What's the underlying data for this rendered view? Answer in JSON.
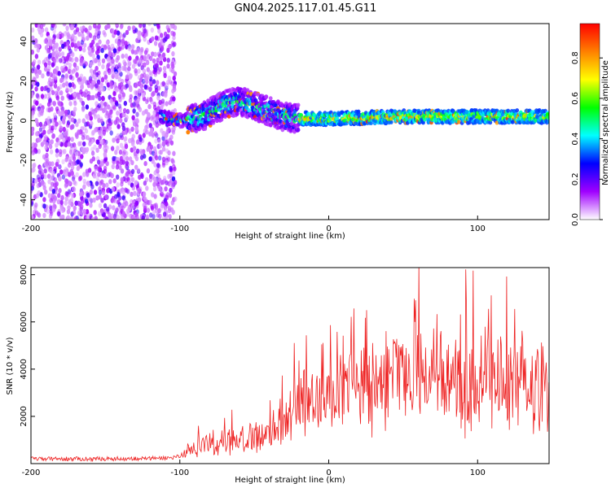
{
  "title": "GN04.2025.117.01.45.G11",
  "chart_data": [
    {
      "type": "heatmap",
      "xlabel": "Height of straight line (km)",
      "ylabel": "Frequency (Hz)",
      "xlim": [
        -200,
        148
      ],
      "ylim": [
        -50,
        49
      ],
      "xticks": [
        -200,
        -100,
        0,
        100
      ],
      "yticks": [
        -40,
        -20,
        0,
        20,
        40
      ],
      "colorbar": {
        "label": "Normalized spectral amplitude",
        "range": [
          0,
          0.97
        ],
        "ticks": [
          "0.0",
          "0.2",
          "0.4",
          "0.6",
          "0.8"
        ],
        "colors": [
          "#ffffff",
          "#a000ff",
          "#0000ff",
          "#00ffff",
          "#00ff00",
          "#ffff00",
          "#ff8000",
          "#ff0000"
        ]
      },
      "regions": [
        {
          "name": "noise",
          "x_range": [
            -200,
            -103
          ],
          "y_range": [
            -50,
            49
          ],
          "amplitude_range": [
            0.0,
            0.2
          ]
        },
        {
          "name": "signal",
          "x_range": [
            -113,
            148
          ],
          "center_frequency": 2,
          "amplitude_range": [
            0.05,
            0.97
          ]
        }
      ],
      "signal_track": [
        {
          "x": -113,
          "f": 2
        },
        {
          "x": -100,
          "f": 0
        },
        {
          "x": -85,
          "f": 2
        },
        {
          "x": -70,
          "f": 8
        },
        {
          "x": -60,
          "f": 10
        },
        {
          "x": -45,
          "f": 6
        },
        {
          "x": -30,
          "f": 2
        },
        {
          "x": -20,
          "f": 1
        },
        {
          "x": 0,
          "f": 1
        },
        {
          "x": 50,
          "f": 2
        },
        {
          "x": 100,
          "f": 2
        },
        {
          "x": 148,
          "f": 2
        }
      ]
    },
    {
      "type": "line",
      "xlabel": "Height of straight line (km)",
      "ylabel": "SNR (10 * v/v)",
      "xlim": [
        -200,
        148
      ],
      "ylim": [
        0,
        8300
      ],
      "xticks": [
        -200,
        -100,
        0,
        100
      ],
      "yticks": [
        2000,
        4000,
        6000,
        8000
      ],
      "color": "#ee2222",
      "series": [
        {
          "x": [
            -200,
            -160,
            -120,
            -105,
            -97,
            -90,
            -80,
            -70,
            -60,
            -50,
            -40,
            -30,
            -25,
            -20,
            -15,
            -10,
            -5,
            0,
            10,
            20,
            30,
            40,
            50,
            60,
            70,
            80,
            90,
            100,
            110,
            120,
            130,
            140,
            148
          ],
          "y": [
            200,
            200,
            220,
            250,
            400,
            700,
            900,
            1000,
            1100,
            1200,
            1300,
            1800,
            2200,
            2600,
            2800,
            2700,
            2900,
            3000,
            3200,
            3500,
            3800,
            4000,
            4100,
            4200,
            4100,
            4000,
            3900,
            3800,
            3700,
            3600,
            3400,
            3200,
            3000
          ]
        }
      ]
    }
  ]
}
